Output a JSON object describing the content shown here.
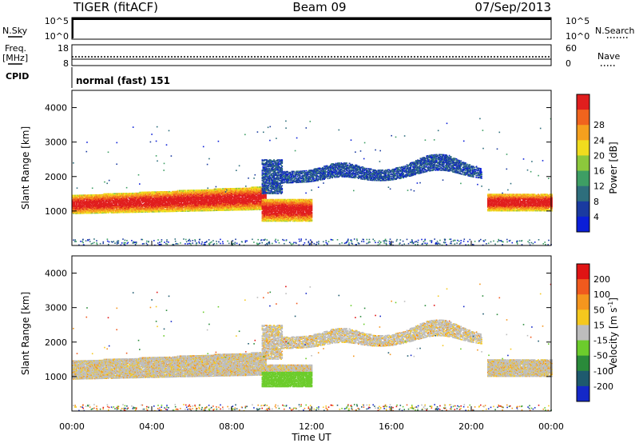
{
  "header": {
    "radar": "TIGER (fitACF)",
    "beam": "Beam 09",
    "date": "07/Sep/2013"
  },
  "colors": {
    "frame": "#000000",
    "ground_scatter": "#bdbdbd",
    "missing": "#ffffff"
  },
  "chart_data": [
    {
      "type": "line",
      "name": "noise-panel",
      "left_label": "N.Sky",
      "right_label": "N.Search",
      "left_ticks": [
        "10^5",
        "10^0"
      ],
      "right_ticks": [
        "10^5",
        "10^0"
      ],
      "legend_right": "N.Search dotted"
    },
    {
      "type": "line",
      "name": "frequency-panel",
      "left_label_lines": [
        "Freq.",
        "[MHz]"
      ],
      "right_label": "Nave",
      "left_ticks": [
        "18",
        "8"
      ],
      "right_ticks": [
        "60",
        "0"
      ],
      "freq_mhz": 10.5,
      "nave": 16
    },
    {
      "type": "table",
      "name": "cpid-panel",
      "label": "CPID",
      "program": "normal (fast) 151"
    },
    {
      "type": "heatmap",
      "name": "power-rti",
      "ylabel": "Slant Range [km]",
      "ylim": [
        0,
        4500
      ],
      "yticks": [
        "1000",
        "2000",
        "3000",
        "4000"
      ],
      "colorbar": {
        "label": "Power [dB]",
        "ticks": [
          "4",
          "8",
          "12",
          "16",
          "20",
          "24",
          "28"
        ],
        "colors": [
          "#0a1ed8",
          "#1a3aa0",
          "#2e6e7c",
          "#3e9e64",
          "#8cc83c",
          "#f0dc1e",
          "#f5a01e",
          "#f0641e",
          "#e01e1e"
        ],
        "range": [
          0,
          30
        ]
      },
      "bands": [
        {
          "t_start": 0,
          "t_end": 9.7,
          "r_low": 950,
          "r_high": 1550,
          "level": "high"
        },
        {
          "t_start": 9.5,
          "t_end": 12,
          "r_low": 700,
          "r_high": 1350,
          "level": "high"
        },
        {
          "t_start": 20.8,
          "t_end": 24,
          "r_low": 1000,
          "r_high": 1500,
          "level": "high"
        },
        {
          "t_start": 9.5,
          "t_end": 20.5,
          "r_low": 1600,
          "r_high": 2600,
          "level": "low"
        }
      ]
    },
    {
      "type": "heatmap",
      "name": "velocity-rti",
      "ylabel": "Slant Range [km]",
      "xlabel": "Time UT",
      "ylim": [
        0,
        4500
      ],
      "yticks": [
        "1000",
        "2000",
        "3000",
        "4000"
      ],
      "xticks": [
        "00:00",
        "04:00",
        "08:00",
        "12:00",
        "16:00",
        "20:00",
        "00:00"
      ],
      "xlim": [
        0,
        24
      ],
      "colorbar": {
        "label": "Velocity [m s",
        "label_sup": "-1",
        "label_end": "]",
        "ticks": [
          "200",
          "100",
          "50",
          "15",
          "-15",
          "-50",
          "-100",
          "-200"
        ],
        "colors": [
          "#1428c8",
          "#1e5a6e",
          "#2a8a3a",
          "#6ccc2c",
          "#bdbdbd",
          "#f5c81e",
          "#f5961e",
          "#f05a1e",
          "#e01414"
        ]
      }
    }
  ]
}
